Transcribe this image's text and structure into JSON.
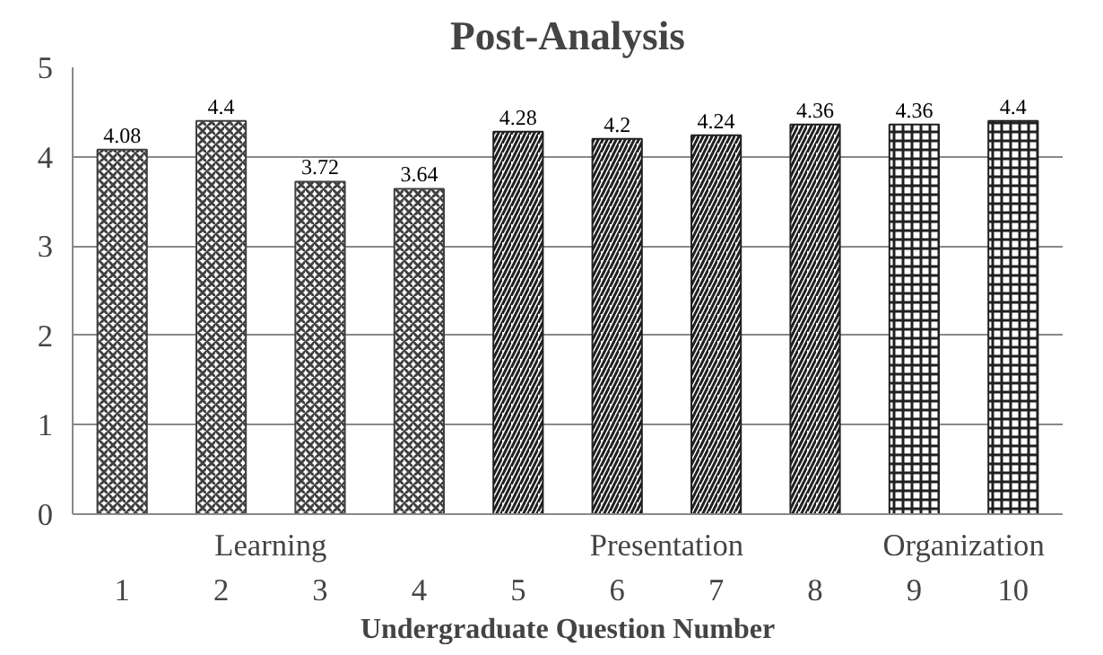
{
  "chart_data": {
    "type": "bar",
    "title": "Post-Analysis",
    "xlabel": "Undergraduate Question Number",
    "categories": [
      "1",
      "2",
      "3",
      "4",
      "5",
      "6",
      "7",
      "8",
      "9",
      "10"
    ],
    "series": [
      {
        "name": "Learning",
        "color": "#404040",
        "values": [
          4.08,
          4.4,
          3.72,
          3.64,
          null,
          null,
          null,
          null,
          null,
          null
        ]
      },
      {
        "name": "Presentation",
        "color": "#202020",
        "values": [
          null,
          null,
          null,
          null,
          4.28,
          4.2,
          4.24,
          4.36,
          null,
          null
        ]
      },
      {
        "name": "Organization",
        "color": "#202020",
        "values": [
          null,
          null,
          null,
          null,
          null,
          null,
          null,
          null,
          4.36,
          4.4
        ]
      }
    ],
    "ylim": [
      0,
      5
    ],
    "yticks": [
      0,
      1,
      2,
      3,
      4,
      5
    ],
    "grid": "y",
    "data_labels": true
  }
}
